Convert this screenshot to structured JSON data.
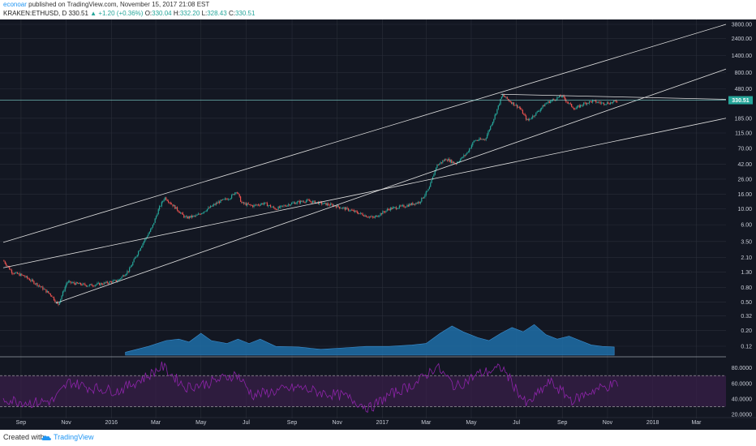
{
  "header": {
    "author": "econoar",
    "published": " published on TradingView.com, November 15, 2017 21:08 EST",
    "symbol": "KRAKEN:ETHUSD, D",
    "last": "330.51",
    "change": "▲ +1.20 (+0.36%)",
    "open_label": "O:",
    "open": "330.04",
    "high_label": "H:",
    "high": "332.20",
    "low_label": "L:",
    "low": "328.43",
    "close_label": "C:",
    "close": "330.51"
  },
  "footer": {
    "created": "Created with",
    "brand": "TradingView"
  },
  "colors": {
    "background": "#131722",
    "grid": "#2a2e39",
    "up": "#26a69a",
    "down": "#ef5350",
    "volume": "#1e6ea8",
    "rsi_line": "#8e24aa",
    "rsi_band": "#3a1f4a",
    "channel": "#e0e0e0",
    "price_badge": "#26a69a"
  },
  "chart_data": [
    {
      "type": "candlestick",
      "scale": "log",
      "price_badge": "330.51",
      "y_ticks": [
        "3800.00",
        "2400.00",
        "1400.00",
        "800.00",
        "480.00",
        "185.00",
        "115.00",
        "70.00",
        "42.00",
        "26.00",
        "16.00",
        "10.00",
        "6.00",
        "3.50",
        "2.10",
        "1.30",
        "0.80",
        "0.50",
        "0.32",
        "0.20",
        "0.12"
      ],
      "y_tick_values": [
        3800,
        2400,
        1400,
        800,
        480,
        185,
        115,
        70,
        42,
        26,
        16,
        10,
        6,
        3.5,
        2.1,
        1.3,
        0.8,
        0.5,
        0.32,
        0.2,
        0.12
      ],
      "x_ticks": [
        "Sep",
        "Nov",
        "2016",
        "Mar",
        "May",
        "Jul",
        "Sep",
        "Nov",
        "2017",
        "Mar",
        "May",
        "Jul",
        "Sep",
        "Nov",
        "2018",
        "Mar"
      ],
      "x_tick_dates": [
        "2015-09-01",
        "2015-11-01",
        "2016-01-01",
        "2016-03-01",
        "2016-05-01",
        "2016-07-01",
        "2016-09-01",
        "2016-11-01",
        "2017-01-01",
        "2017-03-01",
        "2017-05-01",
        "2017-07-01",
        "2017-09-01",
        "2017-11-01",
        "2018-01-01",
        "2018-03-01"
      ],
      "x_range": [
        "2015-08-08",
        "2018-04-10"
      ],
      "price_path": [
        [
          "2015-08-08",
          1.9
        ],
        [
          "2015-08-20",
          1.3
        ],
        [
          "2015-09-05",
          1.15
        ],
        [
          "2015-09-25",
          0.85
        ],
        [
          "2015-10-12",
          0.62
        ],
        [
          "2015-10-21",
          0.45
        ],
        [
          "2015-11-02",
          0.95
        ],
        [
          "2015-11-15",
          0.9
        ],
        [
          "2015-12-01",
          0.85
        ],
        [
          "2015-12-20",
          0.9
        ],
        [
          "2016-01-10",
          1.0
        ],
        [
          "2016-01-25",
          1.4
        ],
        [
          "2016-02-10",
          3.0
        ],
        [
          "2016-02-25",
          5.5
        ],
        [
          "2016-03-05",
          10
        ],
        [
          "2016-03-13",
          14.5
        ],
        [
          "2016-03-25",
          11
        ],
        [
          "2016-04-10",
          7.5
        ],
        [
          "2016-04-25",
          8
        ],
        [
          "2016-05-10",
          10
        ],
        [
          "2016-05-25",
          12.5
        ],
        [
          "2016-06-10",
          14.5
        ],
        [
          "2016-06-18",
          18
        ],
        [
          "2016-06-25",
          12
        ],
        [
          "2016-07-10",
          11
        ],
        [
          "2016-07-25",
          12
        ],
        [
          "2016-08-10",
          10
        ],
        [
          "2016-09-01",
          12
        ],
        [
          "2016-09-20",
          13
        ],
        [
          "2016-10-10",
          12
        ],
        [
          "2016-10-30",
          11
        ],
        [
          "2016-11-20",
          9.5
        ],
        [
          "2016-12-10",
          8
        ],
        [
          "2016-12-20",
          7.5
        ],
        [
          "2017-01-10",
          10
        ],
        [
          "2017-02-01",
          11
        ],
        [
          "2017-02-20",
          12.5
        ],
        [
          "2017-03-05",
          19
        ],
        [
          "2017-03-15",
          40
        ],
        [
          "2017-03-28",
          50
        ],
        [
          "2017-04-10",
          43
        ],
        [
          "2017-04-25",
          60
        ],
        [
          "2017-05-05",
          90
        ],
        [
          "2017-05-20",
          95
        ],
        [
          "2017-06-01",
          190
        ],
        [
          "2017-06-12",
          390
        ],
        [
          "2017-06-22",
          320
        ],
        [
          "2017-07-05",
          260
        ],
        [
          "2017-07-16",
          170
        ],
        [
          "2017-07-28",
          220
        ],
        [
          "2017-08-10",
          300
        ],
        [
          "2017-08-31",
          380
        ],
        [
          "2017-09-10",
          295
        ],
        [
          "2017-09-18",
          250
        ],
        [
          "2017-10-01",
          300
        ],
        [
          "2017-10-12",
          320
        ],
        [
          "2017-10-25",
          300
        ],
        [
          "2017-11-07",
          305
        ],
        [
          "2017-11-15",
          330.51
        ]
      ],
      "channels": [
        [
          [
            "2015-08-08",
            3.4
          ],
          [
            "2018-04-10",
            3800
          ]
        ],
        [
          [
            "2015-10-18",
            0.48
          ],
          [
            "2018-04-10",
            900
          ]
        ],
        [
          [
            "2015-08-08",
            1.5
          ],
          [
            "2018-04-10",
            185
          ]
        ],
        [
          [
            "2017-06-10",
            400
          ],
          [
            "2018-04-10",
            340
          ]
        ]
      ],
      "horizontal_line": 330.51
    },
    {
      "type": "area",
      "name_visible": false,
      "volume_profile": [
        [
          "2016-01-20",
          0.1
        ],
        [
          "2016-02-20",
          0.3
        ],
        [
          "2016-03-15",
          0.5
        ],
        [
          "2016-04-01",
          0.55
        ],
        [
          "2016-04-15",
          0.45
        ],
        [
          "2016-05-01",
          0.75
        ],
        [
          "2016-05-15",
          0.5
        ],
        [
          "2016-06-05",
          0.4
        ],
        [
          "2016-06-20",
          0.55
        ],
        [
          "2016-07-05",
          0.4
        ],
        [
          "2016-07-20",
          0.55
        ],
        [
          "2016-08-10",
          0.3
        ],
        [
          "2016-09-10",
          0.28
        ],
        [
          "2016-10-10",
          0.2
        ],
        [
          "2016-11-10",
          0.25
        ],
        [
          "2016-12-10",
          0.3
        ],
        [
          "2017-01-10",
          0.3
        ],
        [
          "2017-02-10",
          0.35
        ],
        [
          "2017-03-01",
          0.4
        ],
        [
          "2017-03-20",
          0.75
        ],
        [
          "2017-04-05",
          1.0
        ],
        [
          "2017-04-20",
          0.8
        ],
        [
          "2017-05-10",
          0.6
        ],
        [
          "2017-05-25",
          0.5
        ],
        [
          "2017-06-10",
          0.75
        ],
        [
          "2017-06-25",
          0.95
        ],
        [
          "2017-07-10",
          0.8
        ],
        [
          "2017-07-25",
          1.05
        ],
        [
          "2017-08-10",
          0.7
        ],
        [
          "2017-08-25",
          0.55
        ],
        [
          "2017-09-10",
          0.65
        ],
        [
          "2017-09-25",
          0.5
        ],
        [
          "2017-10-10",
          0.35
        ],
        [
          "2017-10-25",
          0.3
        ],
        [
          "2017-11-10",
          0.28
        ]
      ]
    },
    {
      "type": "line",
      "indicator": "RSI",
      "y_ticks": [
        "80.0000",
        "60.0000",
        "40.0000",
        "20.0000"
      ],
      "y_tick_values": [
        80,
        60,
        40,
        20
      ],
      "band": [
        30,
        70
      ],
      "rsi_path": [
        [
          "2015-08-08",
          40
        ],
        [
          "2015-09-15",
          35
        ],
        [
          "2015-10-15",
          38
        ],
        [
          "2015-11-05",
          62
        ],
        [
          "2015-12-01",
          55
        ],
        [
          "2016-01-10",
          50
        ],
        [
          "2016-02-20",
          70
        ],
        [
          "2016-03-10",
          82
        ],
        [
          "2016-04-10",
          55
        ],
        [
          "2016-05-10",
          60
        ],
        [
          "2016-06-18",
          72
        ],
        [
          "2016-07-10",
          45
        ],
        [
          "2016-08-10",
          50
        ],
        [
          "2016-09-10",
          55
        ],
        [
          "2016-10-10",
          48
        ],
        [
          "2016-11-10",
          44
        ],
        [
          "2016-12-15",
          28
        ],
        [
          "2017-01-10",
          45
        ],
        [
          "2017-02-15",
          60
        ],
        [
          "2017-03-15",
          82
        ],
        [
          "2017-04-10",
          55
        ],
        [
          "2017-05-10",
          72
        ],
        [
          "2017-06-12",
          80
        ],
        [
          "2017-07-15",
          32
        ],
        [
          "2017-08-15",
          62
        ],
        [
          "2017-09-15",
          38
        ],
        [
          "2017-10-15",
          52
        ],
        [
          "2017-11-15",
          60
        ]
      ]
    }
  ]
}
